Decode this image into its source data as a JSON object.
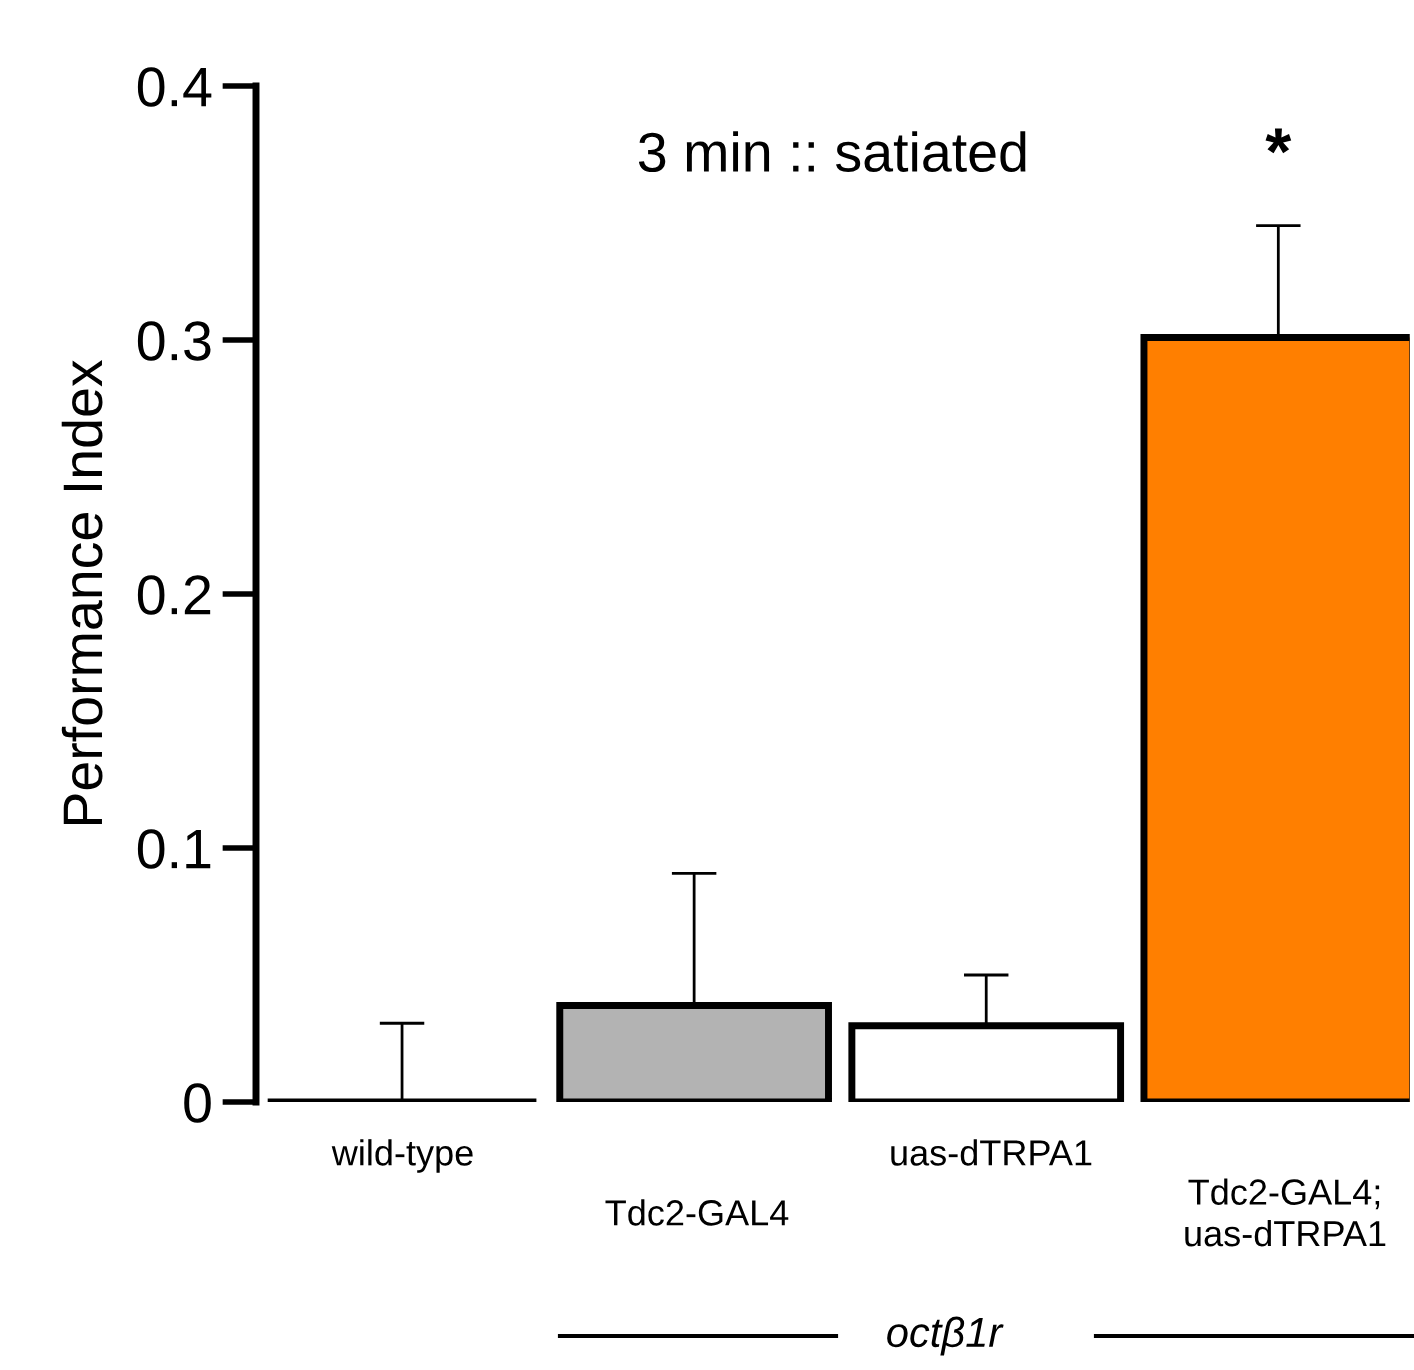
{
  "chart_data": {
    "type": "bar",
    "title": "3 min :: satiated",
    "ylabel": "Performance Index",
    "categories": [
      "wild-type",
      "Tdc2-GAL4",
      "uas-dTRPA1",
      "Tdc2-GAL4;\nuas-dTRPA1"
    ],
    "values": [
      0,
      0.038,
      0.03,
      0.301
    ],
    "colors": [
      "#000000",
      "#b3b3b3",
      "#ffffff",
      "#ff7f00"
    ],
    "errors": [
      [
        0,
        0.031
      ],
      [
        0.038,
        0.09
      ],
      [
        0.03,
        0.05
      ],
      [
        0.301,
        0.345
      ]
    ],
    "ylim": [
      0,
      0.4
    ],
    "yticks": [
      0,
      0.1,
      0.2,
      0.3,
      0.4
    ],
    "grid": false,
    "annotations": [
      "*",
      "octβ1r"
    ]
  }
}
